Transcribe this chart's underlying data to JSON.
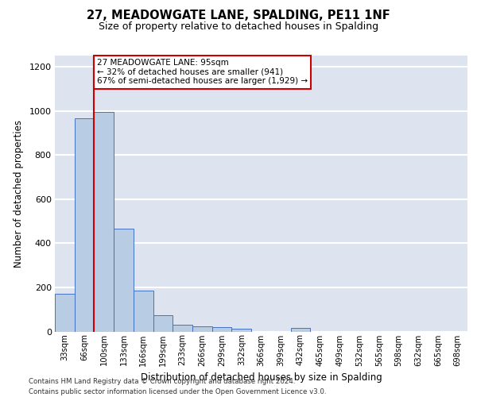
{
  "title_line1": "27, MEADOWGATE LANE, SPALDING, PE11 1NF",
  "title_line2": "Size of property relative to detached houses in Spalding",
  "xlabel": "Distribution of detached houses by size in Spalding",
  "ylabel": "Number of detached properties",
  "categories": [
    "33sqm",
    "66sqm",
    "100sqm",
    "133sqm",
    "166sqm",
    "199sqm",
    "233sqm",
    "266sqm",
    "299sqm",
    "332sqm",
    "366sqm",
    "399sqm",
    "432sqm",
    "465sqm",
    "499sqm",
    "532sqm",
    "565sqm",
    "598sqm",
    "632sqm",
    "665sqm",
    "698sqm"
  ],
  "values": [
    170,
    965,
    995,
    465,
    185,
    75,
    30,
    22,
    18,
    12,
    0,
    0,
    15,
    0,
    0,
    0,
    0,
    0,
    0,
    0,
    0
  ],
  "bar_color": "#b8cce4",
  "bar_edge_color": "#4472c4",
  "vline_x_index": 2,
  "annotation_text": "27 MEADOWGATE LANE: 95sqm\n← 32% of detached houses are smaller (941)\n67% of semi-detached houses are larger (1,929) →",
  "annotation_box_color": "#ffffff",
  "annotation_box_edge_color": "#cc0000",
  "vline_color": "#cc0000",
  "ylim": [
    0,
    1250
  ],
  "yticks": [
    0,
    200,
    400,
    600,
    800,
    1000,
    1200
  ],
  "footer_line1": "Contains HM Land Registry data © Crown copyright and database right 2024.",
  "footer_line2": "Contains public sector information licensed under the Open Government Licence v3.0.",
  "background_color": "#dde4f0",
  "grid_color": "#ffffff"
}
